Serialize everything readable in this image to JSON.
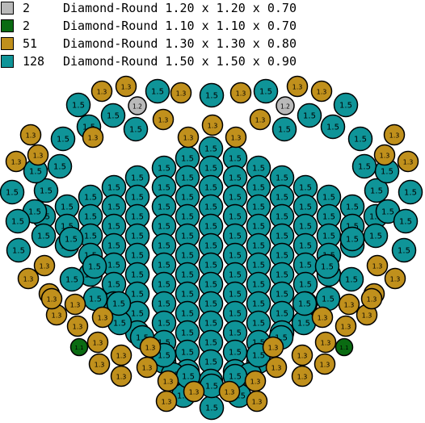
{
  "legend": [
    {
      "count": "2",
      "description": "Diamond-Round 1.20 x 1.20 x 0.70",
      "color": "#b9b9b9"
    },
    {
      "count": "2",
      "description": "Diamond-Round 1.10 x 1.10 x 0.70",
      "color": "#0a6b12"
    },
    {
      "count": "51",
      "description": "Diamond-Round 1.30 x 1.30 x 0.80",
      "color": "#c0901c"
    },
    {
      "count": "128",
      "description": "Diamond-Round 1.50 x 1.50 x 0.90",
      "color": "#0f9498"
    }
  ],
  "stone_types": {
    "1.5": {
      "label": "1.5",
      "color": "#0f9498"
    },
    "1.3": {
      "label": "1.3",
      "color": "#c0901c"
    },
    "1.2": {
      "label": "1.2",
      "color": "#b9b9b9"
    },
    "1.1": {
      "label": "1.1",
      "color": "#0a6b12"
    }
  }
}
